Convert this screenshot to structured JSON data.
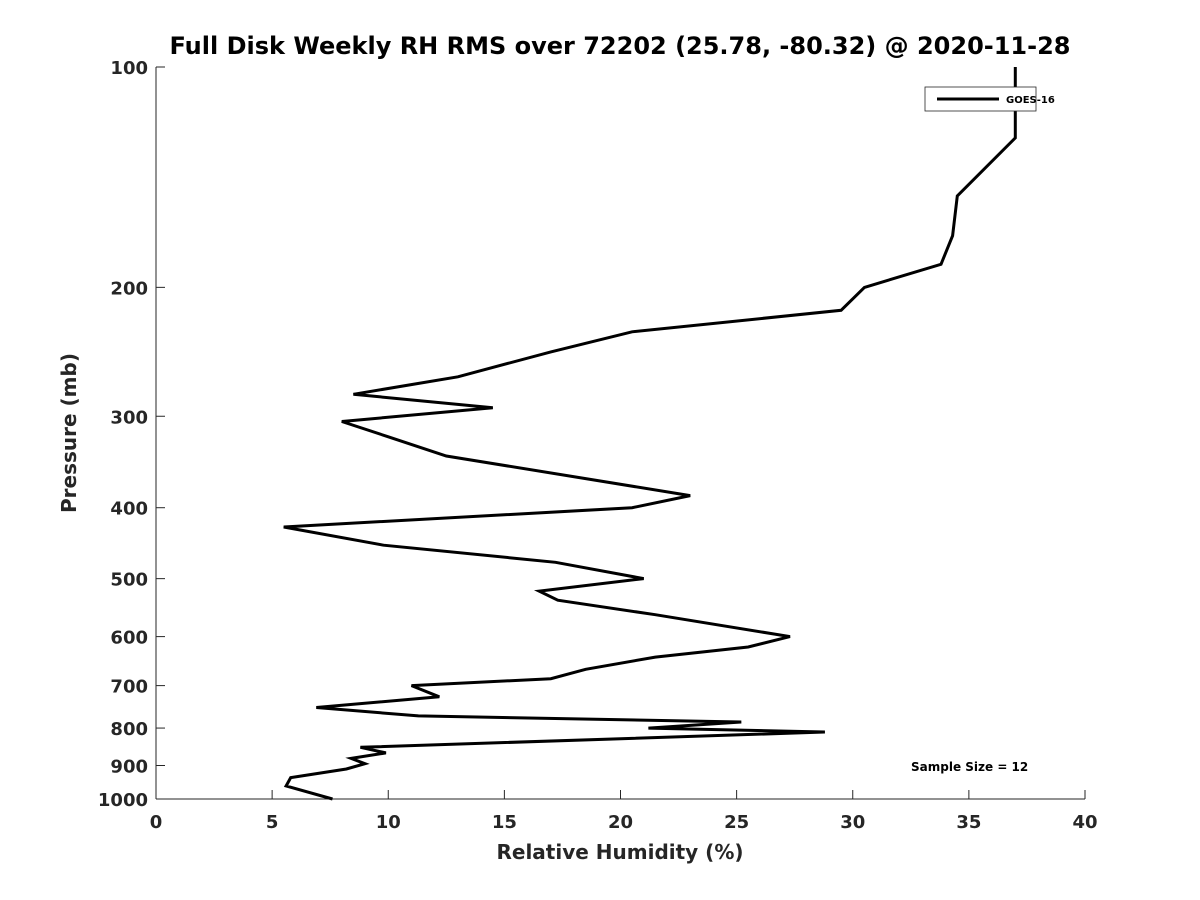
{
  "chart_data": {
    "type": "line",
    "title": "Full Disk Weekly RH RMS over 72202 (25.78, -80.32) @ 2020-11-28",
    "xlabel": "Relative Humidity (%)",
    "ylabel": "Pressure (mb)",
    "xlim": [
      0,
      40
    ],
    "ylim": [
      100,
      1000
    ],
    "y_scale": "log",
    "y_reversed": true,
    "xticks": [
      0,
      5,
      10,
      15,
      20,
      25,
      30,
      35,
      40
    ],
    "yticks": [
      100,
      200,
      300,
      400,
      500,
      600,
      700,
      800,
      900,
      1000
    ],
    "grid": false,
    "legend_position": "top-right",
    "series": [
      {
        "name": "GOES-16",
        "color": "#000000",
        "points": [
          [
            37.0,
            100
          ],
          [
            37.0,
            125
          ],
          [
            34.5,
            150
          ],
          [
            34.3,
            170
          ],
          [
            33.8,
            186
          ],
          [
            30.5,
            200
          ],
          [
            29.5,
            215
          ],
          [
            20.5,
            230
          ],
          [
            17.0,
            245
          ],
          [
            13.0,
            265
          ],
          [
            8.5,
            280
          ],
          [
            14.5,
            292
          ],
          [
            8.0,
            305
          ],
          [
            10.0,
            320
          ],
          [
            12.5,
            340
          ],
          [
            23.0,
            385
          ],
          [
            20.5,
            400
          ],
          [
            5.5,
            425
          ],
          [
            9.8,
            450
          ],
          [
            17.2,
            475
          ],
          [
            21.0,
            500
          ],
          [
            16.5,
            520
          ],
          [
            17.3,
            535
          ],
          [
            21.5,
            560
          ],
          [
            27.3,
            600
          ],
          [
            25.5,
            620
          ],
          [
            21.5,
            640
          ],
          [
            18.5,
            665
          ],
          [
            17.0,
            685
          ],
          [
            11.0,
            700
          ],
          [
            12.2,
            725
          ],
          [
            6.9,
            750
          ],
          [
            11.3,
            770
          ],
          [
            25.2,
            785
          ],
          [
            21.2,
            800
          ],
          [
            28.8,
            810
          ],
          [
            8.8,
            850
          ],
          [
            9.9,
            865
          ],
          [
            8.4,
            880
          ],
          [
            9.0,
            895
          ],
          [
            8.2,
            910
          ],
          [
            5.8,
            935
          ],
          [
            5.6,
            960
          ],
          [
            7.6,
            1000
          ]
        ]
      }
    ],
    "annotations": [
      "Sample Size = 12"
    ]
  }
}
